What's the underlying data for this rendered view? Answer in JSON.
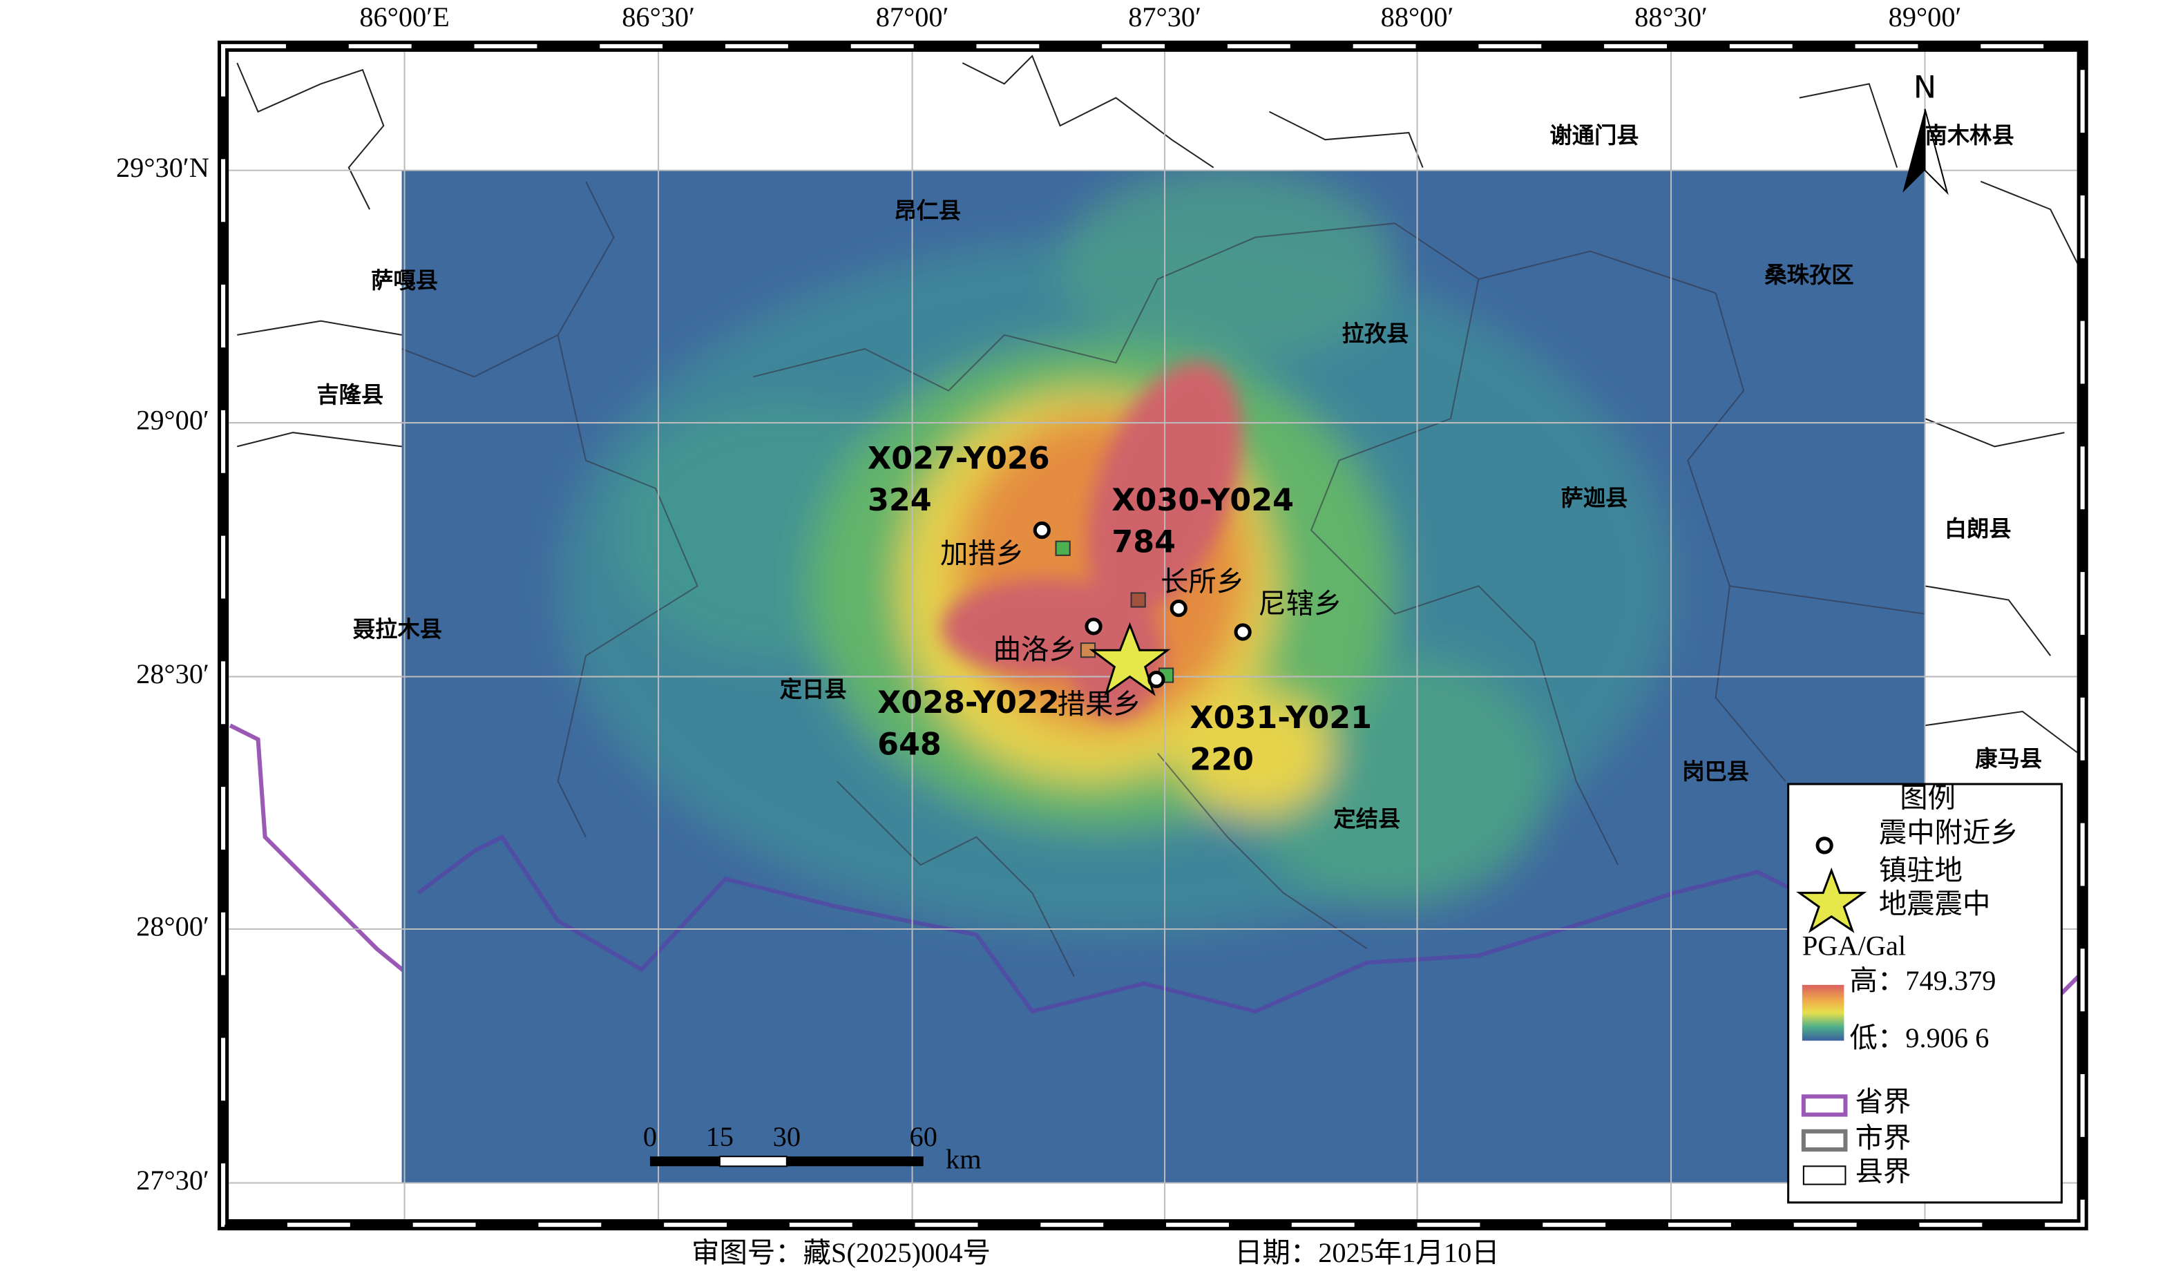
{
  "map": {
    "lon_labels": [
      "86°00′E",
      "86°30′",
      "87°00′",
      "87°30′",
      "88°00′",
      "88°30′",
      "89°00′"
    ],
    "lat_labels": [
      "29°30′N",
      "29°00′",
      "28°30′",
      "28°00′",
      "27°30′"
    ],
    "counties": [
      "谢通门县",
      "南木林县",
      "昂仁县",
      "萨嘎县",
      "桑珠孜区",
      "拉孜县",
      "吉隆县",
      "萨迦县",
      "白朗县",
      "聂拉木县",
      "定日县",
      "岗巴县",
      "康马县",
      "定结县"
    ],
    "towns": [
      "加措乡",
      "长所乡",
      "尼辖乡",
      "曲洛乡",
      "措果乡"
    ],
    "stations": [
      {
        "id": "X027-Y026",
        "value": "324"
      },
      {
        "id": "X030-Y024",
        "value": "784"
      },
      {
        "id": "X028-Y022",
        "value": "648"
      },
      {
        "id": "X031-Y021",
        "value": "220"
      }
    ],
    "north": "N",
    "scale_bar": {
      "ticks": [
        "0",
        "15",
        "30",
        "60"
      ],
      "unit": "km"
    },
    "legend": {
      "title": "图例",
      "town_label_1": "震中附近乡",
      "town_label_2": "镇驻地",
      "epicenter": "地震震中",
      "pga_title": "PGA/Gal",
      "high": "高：749.379",
      "low": "低：9.906 6",
      "province": "省界",
      "city": "市界",
      "county": "县界"
    }
  },
  "footer": {
    "approval": "审图号：藏S(2025)004号",
    "date": "日期：2025年1月10日"
  }
}
